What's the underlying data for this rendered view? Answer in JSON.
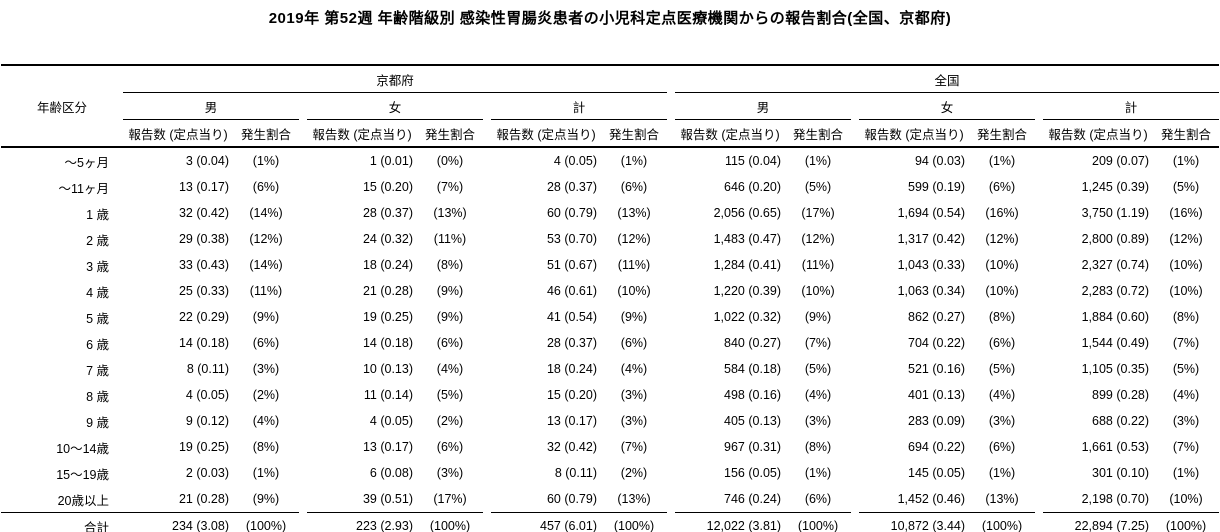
{
  "title": "2019年 第52週 年齢階級別 感染性胃腸炎患者の小児科定点医療機関からの報告割合(全国、京都府)",
  "colors": {
    "text": "#000000",
    "background": "#ffffff",
    "rule": "#000000"
  },
  "table": {
    "age_header": "年齢区分",
    "region_headers": [
      "京都府",
      "全国"
    ],
    "sex_headers": [
      "男",
      "女",
      "計"
    ],
    "col_headers": {
      "count": "報告数 (定点当り)",
      "rate": "発生割合"
    },
    "rows": [
      {
        "age": "～5ヶ月",
        "cells": [
          "3 (0.04)",
          "(1%)",
          "1 (0.01)",
          "(0%)",
          "4 (0.05)",
          "(1%)",
          "115 (0.04)",
          "(1%)",
          "94 (0.03)",
          "(1%)",
          "209 (0.07)",
          "(1%)"
        ]
      },
      {
        "age": "～11ヶ月",
        "cells": [
          "13 (0.17)",
          "(6%)",
          "15 (0.20)",
          "(7%)",
          "28 (0.37)",
          "(6%)",
          "646 (0.20)",
          "(5%)",
          "599 (0.19)",
          "(6%)",
          "1,245 (0.39)",
          "(5%)"
        ]
      },
      {
        "age": "1 歳",
        "cells": [
          "32 (0.42)",
          "(14%)",
          "28 (0.37)",
          "(13%)",
          "60 (0.79)",
          "(13%)",
          "2,056 (0.65)",
          "(17%)",
          "1,694 (0.54)",
          "(16%)",
          "3,750 (1.19)",
          "(16%)"
        ]
      },
      {
        "age": "2 歳",
        "cells": [
          "29 (0.38)",
          "(12%)",
          "24 (0.32)",
          "(11%)",
          "53 (0.70)",
          "(12%)",
          "1,483 (0.47)",
          "(12%)",
          "1,317 (0.42)",
          "(12%)",
          "2,800 (0.89)",
          "(12%)"
        ]
      },
      {
        "age": "3 歳",
        "cells": [
          "33 (0.43)",
          "(14%)",
          "18 (0.24)",
          "(8%)",
          "51 (0.67)",
          "(11%)",
          "1,284 (0.41)",
          "(11%)",
          "1,043 (0.33)",
          "(10%)",
          "2,327 (0.74)",
          "(10%)"
        ]
      },
      {
        "age": "4 歳",
        "cells": [
          "25 (0.33)",
          "(11%)",
          "21 (0.28)",
          "(9%)",
          "46 (0.61)",
          "(10%)",
          "1,220 (0.39)",
          "(10%)",
          "1,063 (0.34)",
          "(10%)",
          "2,283 (0.72)",
          "(10%)"
        ]
      },
      {
        "age": "5 歳",
        "cells": [
          "22 (0.29)",
          "(9%)",
          "19 (0.25)",
          "(9%)",
          "41 (0.54)",
          "(9%)",
          "1,022 (0.32)",
          "(9%)",
          "862 (0.27)",
          "(8%)",
          "1,884 (0.60)",
          "(8%)"
        ]
      },
      {
        "age": "6 歳",
        "cells": [
          "14 (0.18)",
          "(6%)",
          "14 (0.18)",
          "(6%)",
          "28 (0.37)",
          "(6%)",
          "840 (0.27)",
          "(7%)",
          "704 (0.22)",
          "(6%)",
          "1,544 (0.49)",
          "(7%)"
        ]
      },
      {
        "age": "7 歳",
        "cells": [
          "8 (0.11)",
          "(3%)",
          "10 (0.13)",
          "(4%)",
          "18 (0.24)",
          "(4%)",
          "584 (0.18)",
          "(5%)",
          "521 (0.16)",
          "(5%)",
          "1,105 (0.35)",
          "(5%)"
        ]
      },
      {
        "age": "8 歳",
        "cells": [
          "4 (0.05)",
          "(2%)",
          "11 (0.14)",
          "(5%)",
          "15 (0.20)",
          "(3%)",
          "498 (0.16)",
          "(4%)",
          "401 (0.13)",
          "(4%)",
          "899 (0.28)",
          "(4%)"
        ]
      },
      {
        "age": "9 歳",
        "cells": [
          "9 (0.12)",
          "(4%)",
          "4 (0.05)",
          "(2%)",
          "13 (0.17)",
          "(3%)",
          "405 (0.13)",
          "(3%)",
          "283 (0.09)",
          "(3%)",
          "688 (0.22)",
          "(3%)"
        ]
      },
      {
        "age": "10～14歳",
        "cells": [
          "19 (0.25)",
          "(8%)",
          "13 (0.17)",
          "(6%)",
          "32 (0.42)",
          "(7%)",
          "967 (0.31)",
          "(8%)",
          "694 (0.22)",
          "(6%)",
          "1,661 (0.53)",
          "(7%)"
        ]
      },
      {
        "age": "15～19歳",
        "cells": [
          "2 (0.03)",
          "(1%)",
          "6 (0.08)",
          "(3%)",
          "8 (0.11)",
          "(2%)",
          "156 (0.05)",
          "(1%)",
          "145 (0.05)",
          "(1%)",
          "301 (0.10)",
          "(1%)"
        ]
      },
      {
        "age": "20歳以上",
        "cells": [
          "21 (0.28)",
          "(9%)",
          "39 (0.51)",
          "(17%)",
          "60 (0.79)",
          "(13%)",
          "746 (0.24)",
          "(6%)",
          "1,452 (0.46)",
          "(13%)",
          "2,198 (0.70)",
          "(10%)"
        ]
      }
    ],
    "total_row": {
      "age": "合計",
      "cells": [
        "234 (3.08)",
        "(100%)",
        "223 (2.93)",
        "(100%)",
        "457 (6.01)",
        "(100%)",
        "12,022 (3.81)",
        "(100%)",
        "10,872 (3.44)",
        "(100%)",
        "22,894 (7.25)",
        "(100%)"
      ]
    }
  }
}
